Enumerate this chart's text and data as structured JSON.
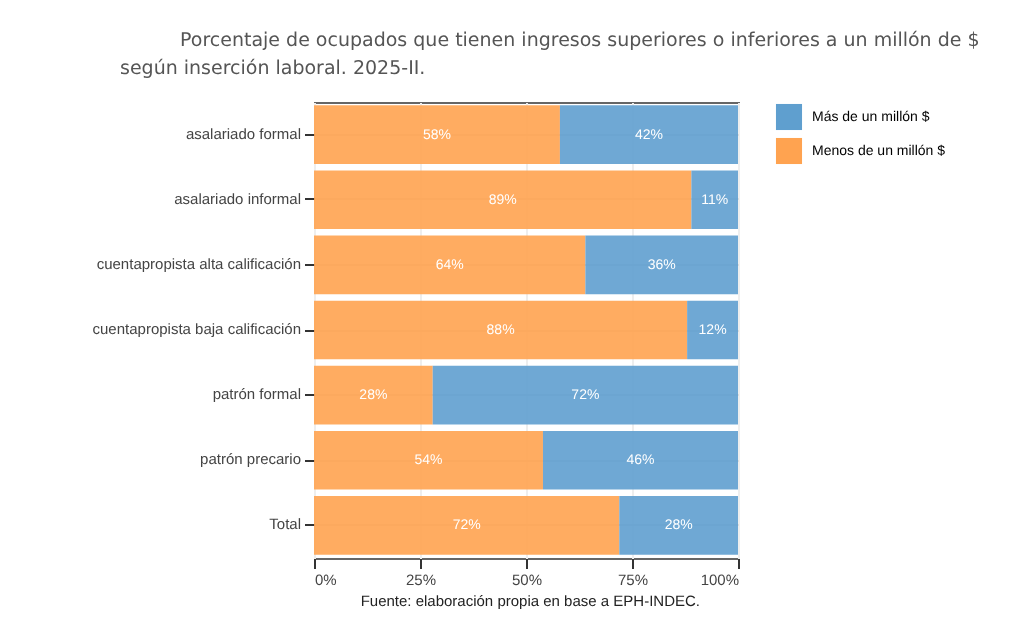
{
  "chart_data": {
    "type": "bar",
    "orientation": "horizontal",
    "stacked": true,
    "title": "Porcentaje de ocupados que tienen ingresos superiores o inferiores a un millón de $ según inserción laboral. 2025-II.",
    "annotations": [
      "Fuente: elaboración propia en base a EPH-INDEC."
    ],
    "categories": [
      "asalariado\nformal",
      "asalariado\ninformal",
      "cuentapropista\nalta\ncalificación",
      "cuentapropista\nbaja\ncalificación",
      "patrón formal",
      "patrón precario",
      "Total"
    ],
    "series": [
      {
        "name": "Menos de un millón $",
        "color": "#ffa350",
        "values": [
          58,
          89,
          64,
          88,
          28,
          54,
          72
        ],
        "value_labels": [
          "58%",
          "89%",
          "64%",
          "88%",
          "28%",
          "54%",
          "72%"
        ]
      },
      {
        "name": "Más de un millón $",
        "color": "#5f9fcf",
        "values": [
          42,
          11,
          36,
          12,
          72,
          46,
          28
        ],
        "value_labels": [
          "42%",
          "11%",
          "36%",
          "12%",
          "72%",
          "46%",
          "28%"
        ]
      }
    ],
    "xlim": [
      0,
      100
    ],
    "xticks": [
      {
        "value": 0,
        "label": "0%"
      },
      {
        "value": 25,
        "label": "25%"
      },
      {
        "value": 50,
        "label": "50%"
      },
      {
        "value": 75,
        "label": "75%"
      },
      {
        "value": 100,
        "label": "100%"
      }
    ],
    "grid": true,
    "legend": "right"
  }
}
